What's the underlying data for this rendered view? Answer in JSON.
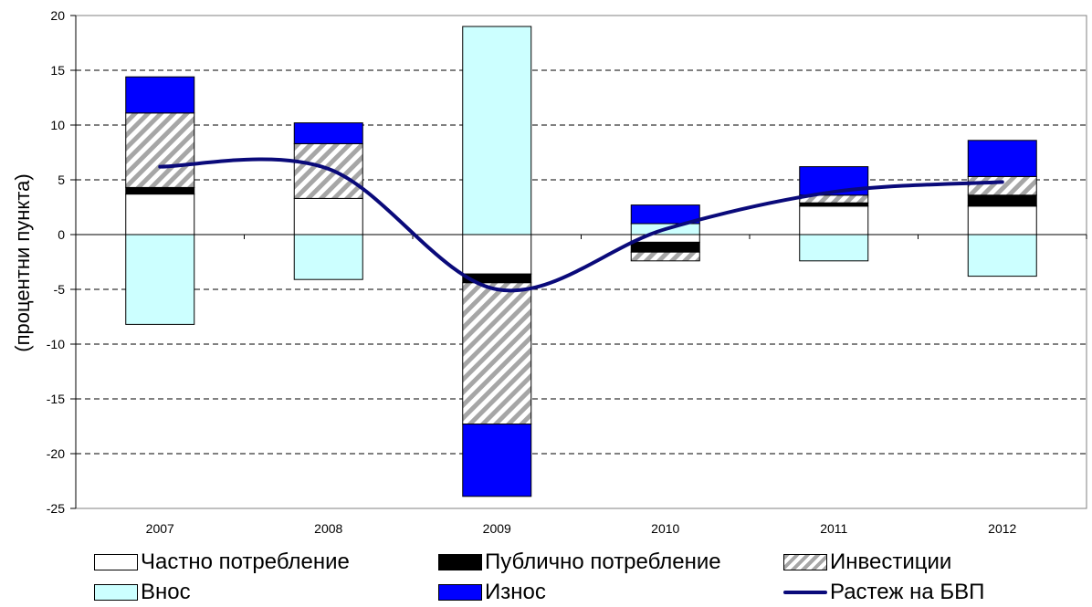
{
  "chart_data": {
    "type": "bar",
    "stacked": true,
    "categories": [
      "2007",
      "2008",
      "2009",
      "2010",
      "2011",
      "2012"
    ],
    "ylabel": "(процентни пункта)",
    "ylim": [
      -25,
      20
    ],
    "yticks": [
      20,
      15,
      10,
      5,
      0,
      -5,
      -10,
      -15,
      -20,
      -25
    ],
    "grid": "dashed-horizontal",
    "legend_position": "bottom",
    "series": [
      {
        "name": "Частно потребление",
        "key": "private",
        "color": "#ffffff",
        "pattern": "none",
        "values": [
          3.7,
          3.3,
          -3.6,
          -0.7,
          2.6,
          2.6
        ]
      },
      {
        "name": "Публично потребление",
        "key": "public",
        "color": "#000000",
        "pattern": "none",
        "values": [
          0.6,
          0.0,
          -0.8,
          -0.9,
          0.3,
          1.0
        ]
      },
      {
        "name": "Инвестиции",
        "key": "invest",
        "color": "#ffffff",
        "pattern": "hatch",
        "values": [
          6.8,
          5.0,
          -12.9,
          -0.8,
          0.7,
          1.7
        ]
      },
      {
        "name": "Внос",
        "key": "imports",
        "color": "#ccffff",
        "pattern": "none",
        "values": [
          -8.2,
          -4.1,
          19.0,
          1.0,
          -2.4,
          -3.8
        ]
      },
      {
        "name": "Износ",
        "key": "exports",
        "color": "#0000ff",
        "pattern": "none",
        "values": [
          3.3,
          1.9,
          -6.6,
          1.7,
          2.6,
          3.3
        ]
      }
    ],
    "line_series": {
      "name": "Растеж на БВП",
      "key": "gdp",
      "color": "#0a0a7a",
      "values": [
        6.2,
        6.0,
        -5.0,
        0.5,
        3.9,
        4.8
      ]
    }
  },
  "legend": {
    "items": [
      {
        "label": "Частно потребление",
        "swatch": "private"
      },
      {
        "label": "Публично потребление",
        "swatch": "public"
      },
      {
        "label": "Инвестиции",
        "swatch": "invest"
      },
      {
        "label": "Внос",
        "swatch": "imports"
      },
      {
        "label": "Износ",
        "swatch": "exports"
      },
      {
        "label": "Растеж на БВП",
        "swatch": "gdp"
      }
    ]
  }
}
